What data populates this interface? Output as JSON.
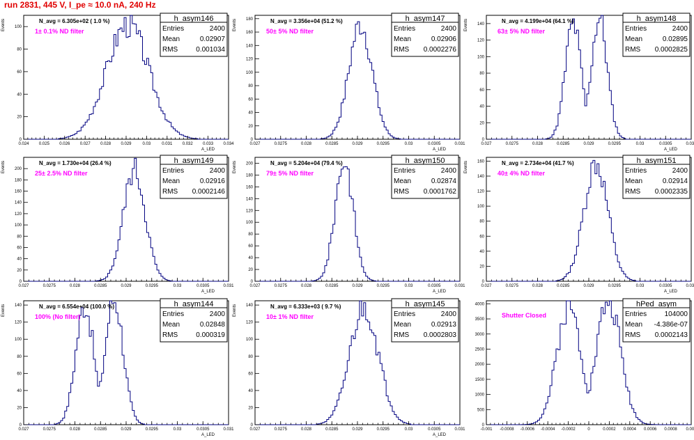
{
  "title": "run 2831,   445 V, I_pe ≈ 10.0 nA, 240 Hz",
  "chart_data": [
    {
      "type": "histogram",
      "name": "h_asym146",
      "entries": "2400",
      "mean": "0.02907",
      "rms": "0.001034",
      "navg": "N_avg = 6.305e+02 ( 1.0 %)",
      "filter": "1± 0.1% ND filter",
      "xlabel": "A_LED",
      "ylabel": "Events",
      "xlim": [
        0.024,
        0.034
      ],
      "ylim": [
        0,
        110
      ],
      "xticks": [
        "0.024",
        "0.025",
        "0.026",
        "0.027",
        "0.028",
        "0.029",
        "0.03",
        "0.031",
        "0.032",
        "0.033",
        "0.034"
      ],
      "yticks": [
        0,
        20,
        40,
        60,
        80,
        100
      ],
      "center": 0.02907,
      "sigma": 0.001034,
      "peak": 102,
      "bins": 100,
      "seed": 3
    },
    {
      "type": "histogram",
      "name": "h_asym147",
      "entries": "2400",
      "mean": "0.02906",
      "rms": "0.0002276",
      "navg": "N_avg = 3.356e+04 (51.2 %)",
      "filter": "50± 5% ND filter",
      "xlabel": "A_LED",
      "ylabel": "Events",
      "xlim": [
        0.027,
        0.031
      ],
      "ylim": [
        0,
        185
      ],
      "xticks": [
        "0.027",
        "0.0275",
        "0.028",
        "0.0285",
        "0.029",
        "0.0295",
        "0.03",
        "0.0305",
        "0.031"
      ],
      "yticks": [
        0,
        20,
        40,
        60,
        80,
        100,
        120,
        140,
        160,
        180
      ],
      "center": 0.02906,
      "sigma": 0.0002276,
      "peak": 172,
      "bins": 100,
      "seed": 7
    },
    {
      "type": "histogram",
      "name": "h_asym148",
      "entries": "2400",
      "mean": "0.02895",
      "rms": "0.0002825",
      "navg": "N_avg = 4.199e+04 (64.1 %)",
      "filter": "63± 5% ND filter",
      "xlabel": "A_LED",
      "ylabel": "Events",
      "xlim": [
        0.027,
        0.031
      ],
      "ylim": [
        0,
        150
      ],
      "xticks": [
        "0.027",
        "0.0275",
        "0.028",
        "0.0285",
        "0.029",
        "0.0295",
        "0.03",
        "0.0305",
        "0.031"
      ],
      "yticks": [
        0,
        20,
        40,
        60,
        80,
        100,
        120,
        140
      ],
      "center": 0.02895,
      "sigma": 0.0002825,
      "peak": 140,
      "bins": 100,
      "seed": 11,
      "dip": 0.25
    },
    {
      "type": "histogram",
      "name": "h_asym149",
      "entries": "2400",
      "mean": "0.02916",
      "rms": "0.0002146",
      "navg": "N_avg = 1.730e+04 (26.4 %)",
      "filter": "25± 2.5% ND filter",
      "xlabel": "A_LED",
      "ylabel": "Events",
      "xlim": [
        0.027,
        0.031
      ],
      "ylim": [
        0,
        220
      ],
      "xticks": [
        "0.027",
        "0.0275",
        "0.028",
        "0.0285",
        "0.029",
        "0.0295",
        "0.03",
        "0.0305",
        "0.031"
      ],
      "yticks": [
        0,
        20,
        40,
        60,
        80,
        100,
        120,
        140,
        160,
        180,
        200
      ],
      "center": 0.02916,
      "sigma": 0.0002146,
      "peak": 198,
      "bins": 100,
      "seed": 5
    },
    {
      "type": "histogram",
      "name": "h_asym150",
      "entries": "2400",
      "mean": "0.02874",
      "rms": "0.0001762",
      "navg": "N_avg = 5.204e+04 (79.4 %)",
      "filter": "79± 5% ND filter",
      "xlabel": "A_LED",
      "ylabel": "Events",
      "xlim": [
        0.027,
        0.031
      ],
      "ylim": [
        0,
        210
      ],
      "xticks": [
        "0.027",
        "0.0275",
        "0.028",
        "0.0285",
        "0.029",
        "0.0295",
        "0.03",
        "0.0305",
        "0.031"
      ],
      "yticks": [
        0,
        20,
        40,
        60,
        80,
        100,
        120,
        140,
        160,
        180,
        200
      ],
      "center": 0.02874,
      "sigma": 0.0001762,
      "peak": 205,
      "bins": 100,
      "seed": 9
    },
    {
      "type": "histogram",
      "name": "h_asym151",
      "entries": "2400",
      "mean": "0.02914",
      "rms": "0.0002335",
      "navg": "N_avg = 2.734e+04 (41.7 %)",
      "filter": "40± 4% ND filter",
      "xlabel": "A_LED",
      "ylabel": "Events",
      "xlim": [
        0.027,
        0.031
      ],
      "ylim": [
        0,
        165
      ],
      "xticks": [
        "0.027",
        "0.0275",
        "0.028",
        "0.0285",
        "0.029",
        "0.0295",
        "0.03",
        "0.0305",
        "0.031"
      ],
      "yticks": [
        0,
        20,
        40,
        60,
        80,
        100,
        120,
        140,
        160
      ],
      "center": 0.02914,
      "sigma": 0.0002335,
      "peak": 158,
      "bins": 100,
      "seed": 13
    },
    {
      "type": "histogram",
      "name": "h_asym144",
      "entries": "2400",
      "mean": "0.02848",
      "rms": "0.000319",
      "navg": "N_avg = 6.554e+04 (100.0 %)",
      "filter": "100% (No filter)",
      "xlabel": "A_LED",
      "ylabel": "Events",
      "xlim": [
        0.027,
        0.031
      ],
      "ylim": [
        0,
        145
      ],
      "xticks": [
        "0.027",
        "0.0275",
        "0.028",
        "0.0285",
        "0.029",
        "0.0295",
        "0.03",
        "0.0305",
        "0.031"
      ],
      "yticks": [
        0,
        20,
        40,
        60,
        80,
        100,
        120,
        140
      ],
      "center": 0.02848,
      "sigma": 0.000319,
      "peak": 140,
      "bins": 100,
      "seed": 17,
      "dip": 0.35
    },
    {
      "type": "histogram",
      "name": "h_asym145",
      "entries": "2400",
      "mean": "0.02913",
      "rms": "0.0002803",
      "navg": "N_avg = 6.333e+03 ( 9.7 %)",
      "filter": "10± 1% ND filter",
      "xlabel": "A_LED",
      "ylabel": "Events",
      "xlim": [
        0.027,
        0.031
      ],
      "ylim": [
        0,
        145
      ],
      "xticks": [
        "0.027",
        "0.0275",
        "0.028",
        "0.0285",
        "0.029",
        "0.0295",
        "0.03",
        "0.0305",
        "0.031"
      ],
      "yticks": [
        0,
        20,
        40,
        60,
        80,
        100,
        120,
        140
      ],
      "center": 0.02913,
      "sigma": 0.0002803,
      "peak": 138,
      "bins": 100,
      "seed": 21
    },
    {
      "type": "histogram",
      "name": "hPed_asym",
      "entries": "104000",
      "mean": "-4.386e-07",
      "rms": "0.0002143",
      "navg": "",
      "filter": "Shutter Closed",
      "xlabel": "",
      "ylabel": "",
      "xlim": [
        -0.001,
        0.001
      ],
      "ylim": [
        0,
        4100
      ],
      "xticks": [
        "-0.001",
        "-0.0008",
        "-0.0006",
        "-0.0004",
        "-0.0002",
        "0",
        "0.0002",
        "0.0004",
        "0.0006",
        "0.0008",
        "0.001"
      ],
      "yticks": [
        0,
        500,
        1000,
        1500,
        2000,
        2500,
        3000,
        3500,
        4000
      ],
      "center": 0.0,
      "sigma": 0.0002143,
      "peak": 3950,
      "bins": 100,
      "seed": 2,
      "dip": 0.7,
      "bimodal": true
    }
  ]
}
